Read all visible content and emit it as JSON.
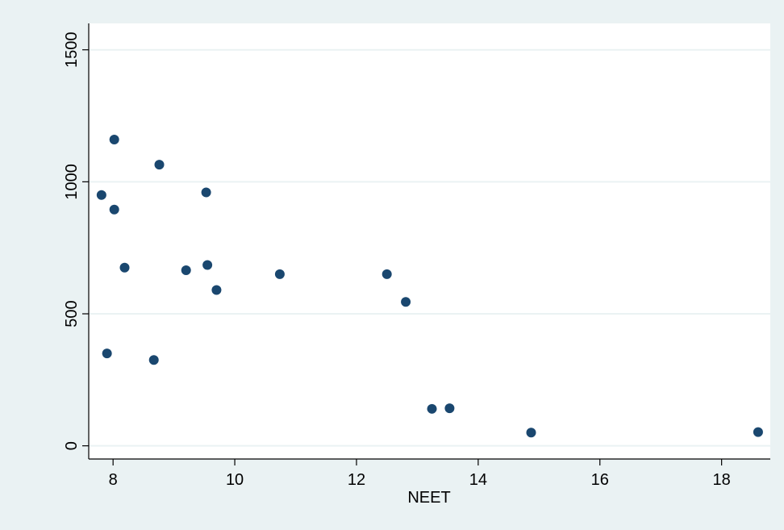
{
  "colors": {
    "background": "#eaf2f3",
    "plot_background": "#ffffff",
    "gridline": "#eaf2f3",
    "axis": "#000000",
    "marker": "#1a476f"
  },
  "chart_data": {
    "type": "scatter",
    "title": "",
    "xlabel": "NEET",
    "ylabel": "",
    "xlim": [
      7.6,
      18.8
    ],
    "ylim": [
      -50,
      1600
    ],
    "xticks": [
      8,
      10,
      12,
      14,
      16,
      18
    ],
    "yticks": [
      0,
      500,
      1000,
      1500
    ],
    "grid": "horizontal",
    "legend": "none",
    "series": [
      {
        "marker": "filled-circle",
        "points": [
          {
            "x": 7.81,
            "y": 950
          },
          {
            "x": 7.9,
            "y": 350
          },
          {
            "x": 8.02,
            "y": 1160
          },
          {
            "x": 8.02,
            "y": 895
          },
          {
            "x": 8.19,
            "y": 675
          },
          {
            "x": 8.67,
            "y": 325
          },
          {
            "x": 8.76,
            "y": 1065
          },
          {
            "x": 9.2,
            "y": 665
          },
          {
            "x": 9.53,
            "y": 960
          },
          {
            "x": 9.55,
            "y": 685
          },
          {
            "x": 9.7,
            "y": 590
          },
          {
            "x": 10.74,
            "y": 650
          },
          {
            "x": 12.5,
            "y": 650
          },
          {
            "x": 12.81,
            "y": 545
          },
          {
            "x": 13.24,
            "y": 140
          },
          {
            "x": 13.53,
            "y": 142
          },
          {
            "x": 14.87,
            "y": 50
          },
          {
            "x": 18.6,
            "y": 52
          }
        ]
      }
    ]
  }
}
